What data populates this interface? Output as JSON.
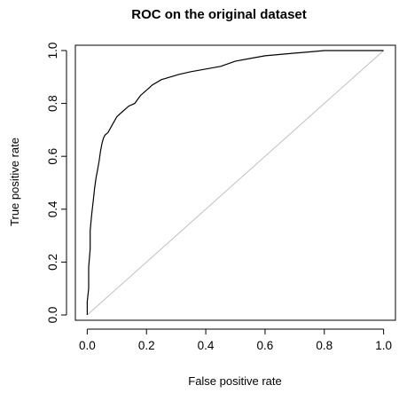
{
  "chart_data": {
    "type": "line",
    "title": "ROC on the original dataset",
    "xlabel": "False positive rate",
    "ylabel": "True positive rate",
    "xlim": [
      -0.04,
      1.04
    ],
    "ylim": [
      -0.02,
      1.02
    ],
    "xticks": [
      "0.0",
      "0.2",
      "0.4",
      "0.6",
      "0.8",
      "1.0"
    ],
    "yticks": [
      "0.0",
      "0.2",
      "0.4",
      "0.6",
      "0.8",
      "1.0"
    ],
    "grid": false,
    "legend": "none",
    "series": [
      {
        "color": "#000000",
        "x": [
          0.0,
          0.0,
          0.005,
          0.005,
          0.01,
          0.01,
          0.015,
          0.02,
          0.025,
          0.03,
          0.035,
          0.04,
          0.045,
          0.05,
          0.055,
          0.06,
          0.07,
          0.08,
          0.09,
          0.1,
          0.12,
          0.14,
          0.16,
          0.18,
          0.2,
          0.22,
          0.25,
          0.28,
          0.31,
          0.35,
          0.4,
          0.45,
          0.5,
          0.55,
          0.6,
          0.65,
          0.7,
          0.75,
          0.8,
          0.85,
          0.9,
          0.95,
          1.0
        ],
        "y": [
          0.0,
          0.05,
          0.1,
          0.18,
          0.25,
          0.32,
          0.38,
          0.43,
          0.48,
          0.52,
          0.55,
          0.58,
          0.62,
          0.65,
          0.67,
          0.68,
          0.69,
          0.71,
          0.73,
          0.75,
          0.77,
          0.79,
          0.8,
          0.83,
          0.85,
          0.87,
          0.89,
          0.9,
          0.91,
          0.92,
          0.93,
          0.94,
          0.96,
          0.97,
          0.98,
          0.985,
          0.99,
          0.995,
          1.0,
          1.0,
          1.0,
          1.0,
          1.0
        ]
      }
    ],
    "reference_line": {
      "x": [
        0,
        1
      ],
      "y": [
        0,
        1
      ],
      "color": "#bebebe"
    }
  }
}
